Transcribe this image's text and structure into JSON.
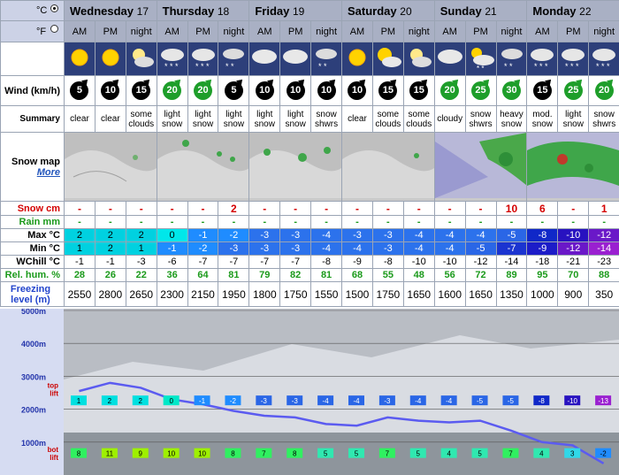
{
  "units": {
    "celsius": "°C",
    "fahrenheit": "°F",
    "selected": "celsius"
  },
  "days": [
    {
      "name": "Wednesday",
      "date": "17"
    },
    {
      "name": "Thursday",
      "date": "18"
    },
    {
      "name": "Friday",
      "date": "19"
    },
    {
      "name": "Saturday",
      "date": "20"
    },
    {
      "name": "Sunday",
      "date": "21"
    },
    {
      "name": "Monday",
      "date": "22"
    }
  ],
  "periods": [
    "AM",
    "PM",
    "night",
    "AM",
    "PM",
    "night",
    "AM",
    "PM",
    "night",
    "AM",
    "PM",
    "night",
    "AM",
    "PM",
    "night",
    "AM",
    "PM",
    "night"
  ],
  "icons": [
    "sun-icon",
    "sun-icon",
    "moon-cloud-icon",
    "snow-cloud-icon",
    "snow-cloud-icon",
    "night-snow-icon",
    "cloud-icon",
    "cloud-icon",
    "night-snow-icon",
    "sun-icon",
    "sun-cloud-icon",
    "moon-cloud-icon",
    "cloud-icon",
    "snow-shower-icon",
    "night-snow-icon",
    "snow-cloud-icon",
    "snow-cloud-icon",
    "snow-cloud-icon"
  ],
  "labels": {
    "wind": "Wind (km/h)",
    "summary": "Summary",
    "snow_map": "Snow map",
    "more": "More",
    "snow_cm": "Snow cm",
    "rain_mm": "Rain mm",
    "max": "Max °C",
    "min": "Min °C",
    "wchill": "WChill °C",
    "rel_hum": "Rel. hum. %",
    "freezing": "Freezing level (m)"
  },
  "wind": [
    "5",
    "10",
    "15",
    "20",
    "20",
    "5",
    "10",
    "10",
    "10",
    "10",
    "15",
    "15",
    "20",
    "25",
    "30",
    "15",
    "25",
    "20"
  ],
  "wind_green": [
    false,
    false,
    false,
    true,
    true,
    false,
    false,
    false,
    false,
    false,
    false,
    false,
    true,
    true,
    true,
    false,
    true,
    true
  ],
  "summary": [
    "clear",
    "clear",
    "some clouds",
    "light snow",
    "light snow",
    "light snow",
    "light snow",
    "light snow",
    "snow shwrs",
    "clear",
    "some clouds",
    "some clouds",
    "cloudy",
    "snow shwrs",
    "heavy snow",
    "mod. snow",
    "light snow",
    "snow shwrs"
  ],
  "snow_cm": [
    "-",
    "-",
    "-",
    "-",
    "-",
    "2",
    "-",
    "-",
    "-",
    "-",
    "-",
    "-",
    "-",
    "-",
    "10",
    "6",
    "-",
    "1"
  ],
  "rain_mm": [
    "-",
    "-",
    "-",
    "-",
    "-",
    "-",
    "-",
    "-",
    "-",
    "-",
    "-",
    "-",
    "-",
    "-",
    "-",
    "-",
    "-",
    "-"
  ],
  "max": [
    "2",
    "2",
    "2",
    "0",
    "-1",
    "-2",
    "-3",
    "-3",
    "-4",
    "-3",
    "-3",
    "-4",
    "-4",
    "-4",
    "-5",
    "-8",
    "-10",
    "-12"
  ],
  "min": [
    "1",
    "2",
    "1",
    "-1",
    "-2",
    "-3",
    "-3",
    "-3",
    "-4",
    "-4",
    "-3",
    "-4",
    "-4",
    "-5",
    "-7",
    "-9",
    "-12",
    "-14"
  ],
  "wchill": [
    "-1",
    "-1",
    "-3",
    "-6",
    "-7",
    "-7",
    "-7",
    "-7",
    "-8",
    "-9",
    "-8",
    "-10",
    "-10",
    "-12",
    "-14",
    "-18",
    "-21",
    "-23"
  ],
  "rel_hum": [
    "28",
    "26",
    "22",
    "36",
    "64",
    "81",
    "79",
    "82",
    "81",
    "68",
    "55",
    "48",
    "56",
    "72",
    "89",
    "95",
    "70",
    "88"
  ],
  "freezing": [
    "2550",
    "2800",
    "2650",
    "2300",
    "2150",
    "1950",
    "1800",
    "1750",
    "1550",
    "1500",
    "1750",
    "1650",
    "1600",
    "1650",
    "1350",
    "1000",
    "900",
    "350"
  ],
  "chart": {
    "y_labels": [
      "5000m",
      "4000m",
      "3000m",
      "2000m",
      "1000m"
    ],
    "top_lift_label": "top lift",
    "bot_lift_label": "bot lift",
    "top_temps": [
      "1",
      "2",
      "2",
      "0",
      "-1",
      "-2",
      "-3",
      "-3",
      "-4",
      "-4",
      "-3",
      "-4",
      "-4",
      "-5",
      "-5",
      "-8",
      "-10",
      "-13"
    ],
    "bot_temps": [
      "8",
      "11",
      "9",
      "10",
      "10",
      "8",
      "7",
      "8",
      "5",
      "5",
      "7",
      "5",
      "4",
      "5",
      "7",
      "4",
      "3",
      "-2"
    ]
  }
}
